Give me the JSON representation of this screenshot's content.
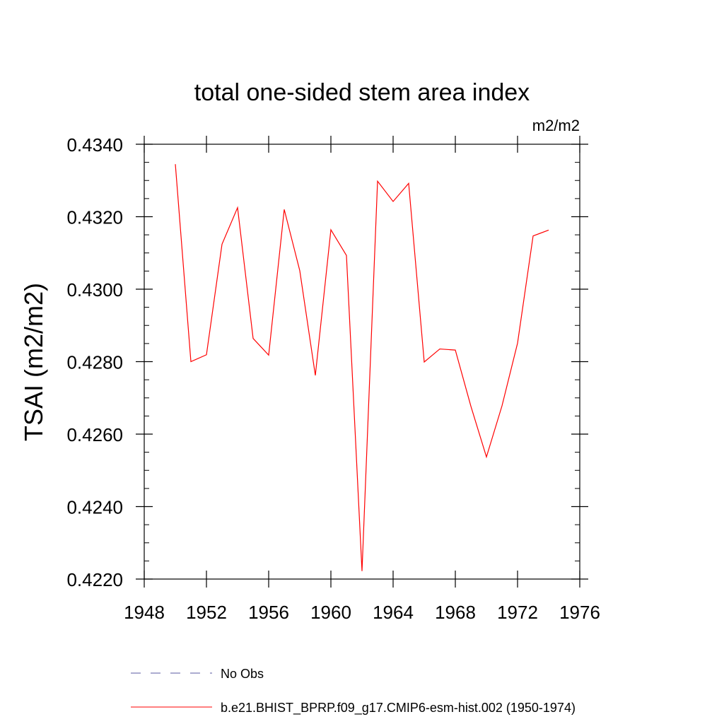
{
  "chart_data": {
    "type": "line",
    "title": "total one-sided stem area index",
    "units": "m2/m2",
    "xlabel": "",
    "ylabel": "TSAI  (m2/m2)",
    "xlim": [
      1948,
      1976
    ],
    "ylim": [
      0.422,
      0.434
    ],
    "xticks": [
      "1948",
      "1952",
      "1956",
      "1960",
      "1964",
      "1968",
      "1972",
      "1976"
    ],
    "yticks": [
      "0.4220",
      "0.4240",
      "0.4260",
      "0.4280",
      "0.4300",
      "0.4320",
      "0.4340"
    ],
    "series": [
      {
        "name": "b.e21.BHIST_BPRP.f09_g17.CMIP6-esm-hist.002 (1950-1974)",
        "color": "#ff0000",
        "dash": "solid",
        "x": [
          1950,
          1951,
          1952,
          1953,
          1954,
          1955,
          1956,
          1957,
          1958,
          1959,
          1960,
          1961,
          1962,
          1963,
          1964,
          1965,
          1966,
          1967,
          1968,
          1969,
          1970,
          1971,
          1972,
          1973,
          1974
        ],
        "y": [
          0.43345,
          0.428,
          0.42819,
          0.43124,
          0.43225,
          0.42864,
          0.42818,
          0.4322,
          0.43051,
          0.42762,
          0.43164,
          0.43093,
          0.42222,
          0.43298,
          0.43242,
          0.43292,
          0.42799,
          0.42835,
          0.42832,
          0.42677,
          0.42537,
          0.42678,
          0.42851,
          0.43147,
          0.43163
        ]
      }
    ],
    "legend": [
      {
        "label": "No Obs",
        "color": "#5a5aa0",
        "dash": "dashed"
      },
      {
        "label": "b.e21.BHIST_BPRP.f09_g17.CMIP6-esm-hist.002 (1950-1974)",
        "color": "#ff0000",
        "dash": "solid"
      }
    ],
    "legend_position": "bottom",
    "grid": false
  }
}
